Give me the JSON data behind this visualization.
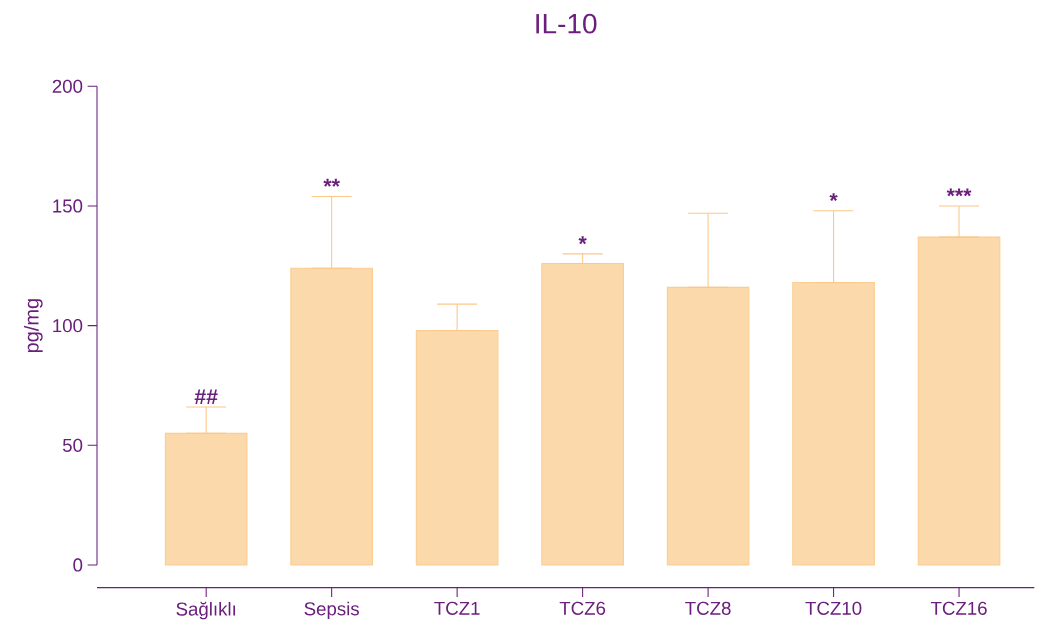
{
  "chart_data": {
    "type": "bar",
    "title": "IL-10",
    "ylabel": "pg/mg",
    "categories": [
      "Sağlıklı",
      "Sepsis",
      "TCZ1",
      "TCZ6",
      "TCZ8",
      "TCZ10",
      "TCZ16"
    ],
    "values": [
      55,
      124,
      98,
      126,
      116,
      118,
      137
    ],
    "errors": [
      [
        55,
        66
      ],
      [
        124,
        154
      ],
      [
        98,
        109
      ],
      [
        126,
        130
      ],
      [
        116,
        147
      ],
      [
        118,
        148
      ],
      [
        137,
        150
      ]
    ],
    "color": "#fbd9ab",
    "ylim": [
      0,
      200
    ],
    "yticks": [
      0,
      50,
      100,
      150,
      200
    ],
    "grid": false,
    "annotations": [
      {
        "text": "##",
        "x": "Sağlıklı",
        "y": 66
      },
      {
        "text": "**",
        "x": "Sepsis",
        "y": 154
      },
      {
        "text": "*",
        "x": "TCZ6",
        "y": 130
      },
      {
        "text": "*",
        "x": "TCZ10",
        "y": 148
      },
      {
        "text": "***",
        "x": "TCZ16",
        "y": 150
      }
    ]
  }
}
